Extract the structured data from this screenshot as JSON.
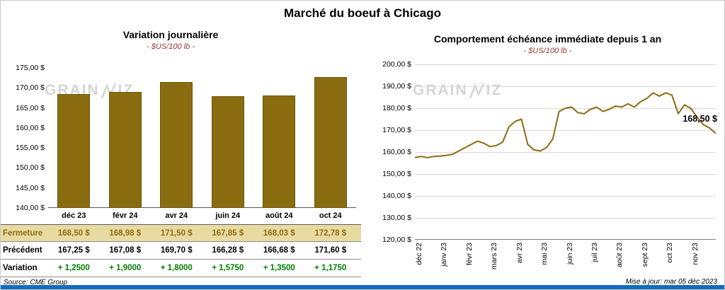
{
  "page": {
    "title": "Marché du boeuf à Chicago",
    "watermark": "GRAINWIZ",
    "source": "Source: CME Group",
    "updated": "Mise à jour: mar 05 déc 2023"
  },
  "colors": {
    "gold": "#8a6c10",
    "highlight_bg": "#e8dba2",
    "positive_green": "#008000",
    "footer_blue": "#0f6cc0",
    "subtitle_red": "#963634",
    "watermark_gray": "#d5d5d5",
    "grid_gray": "#d9d9d9"
  },
  "chart_data": [
    {
      "type": "bar",
      "title": "Variation journalière",
      "subtitle": "- $US/100 lb -",
      "categories": [
        "déc 23",
        "févr 24",
        "avr 24",
        "juin 24",
        "août 24",
        "oct 24"
      ],
      "values": [
        168.5,
        168.98,
        171.5,
        167.85,
        168.03,
        172.78
      ],
      "ylim": [
        140,
        175
      ],
      "ytick_step": 5,
      "ytick_labels": [
        "175,00 $",
        "170,00 $",
        "165,00 $",
        "160,00 $",
        "155,00 $",
        "150,00 $",
        "145,00 $",
        "140,00 $"
      ],
      "bar_color": "#8a6c10",
      "grid": false,
      "legend": "none"
    },
    {
      "type": "line",
      "title": "Comportement échéance immédiate depuis 1 an",
      "subtitle": "- $US/100 lb -",
      "x_tick_labels": [
        "déc 22",
        "janv 23",
        "févr 23",
        "mars 23",
        "avr 23",
        "mai 23",
        "juin 23",
        "juil 23",
        "août 23",
        "sept 23",
        "oct 23",
        "nov 23"
      ],
      "values": [
        157.5,
        158,
        157.5,
        158,
        158.2,
        158.5,
        159,
        160.5,
        162,
        163.5,
        165,
        164,
        162.5,
        163,
        164.5,
        171.5,
        174,
        175,
        163.5,
        161,
        160.5,
        162,
        166,
        178.5,
        180,
        180.5,
        178,
        177.5,
        179.5,
        180.5,
        178.5,
        179.5,
        181,
        180.5,
        182,
        180.5,
        183,
        184.5,
        187,
        185.5,
        187,
        186,
        177.5,
        181.5,
        180,
        176,
        172.5,
        171,
        168.5
      ],
      "ylim": [
        120,
        200
      ],
      "ytick_step": 10,
      "ytick_labels": [
        "200,00 $",
        "190,00 $",
        "180,00 $",
        "170,00 $",
        "160,00 $",
        "150,00 $",
        "140,00 $",
        "130,00 $",
        "120,00 $"
      ],
      "line_color": "#8a6c10",
      "grid": true,
      "legend": "none",
      "last_value_label": "168,50 $"
    }
  ],
  "table": {
    "rows": [
      {
        "name": "fermeture",
        "label": "Fermeture",
        "values": [
          "168,50 $",
          "168,98 $",
          "171,50 $",
          "167,85 $",
          "168,03 $",
          "172,78 $"
        ]
      },
      {
        "name": "precedent",
        "label": "Précédent",
        "values": [
          "167,25 $",
          "167,08 $",
          "169,70 $",
          "166,28 $",
          "166,68 $",
          "171,60 $"
        ]
      },
      {
        "name": "variation",
        "label": "Variation",
        "values": [
          "+ 1,2500",
          "+ 1,9000",
          "+ 1,8000",
          "+ 1,5750",
          "+ 1,3500",
          "+ 1,1750"
        ]
      }
    ]
  }
}
